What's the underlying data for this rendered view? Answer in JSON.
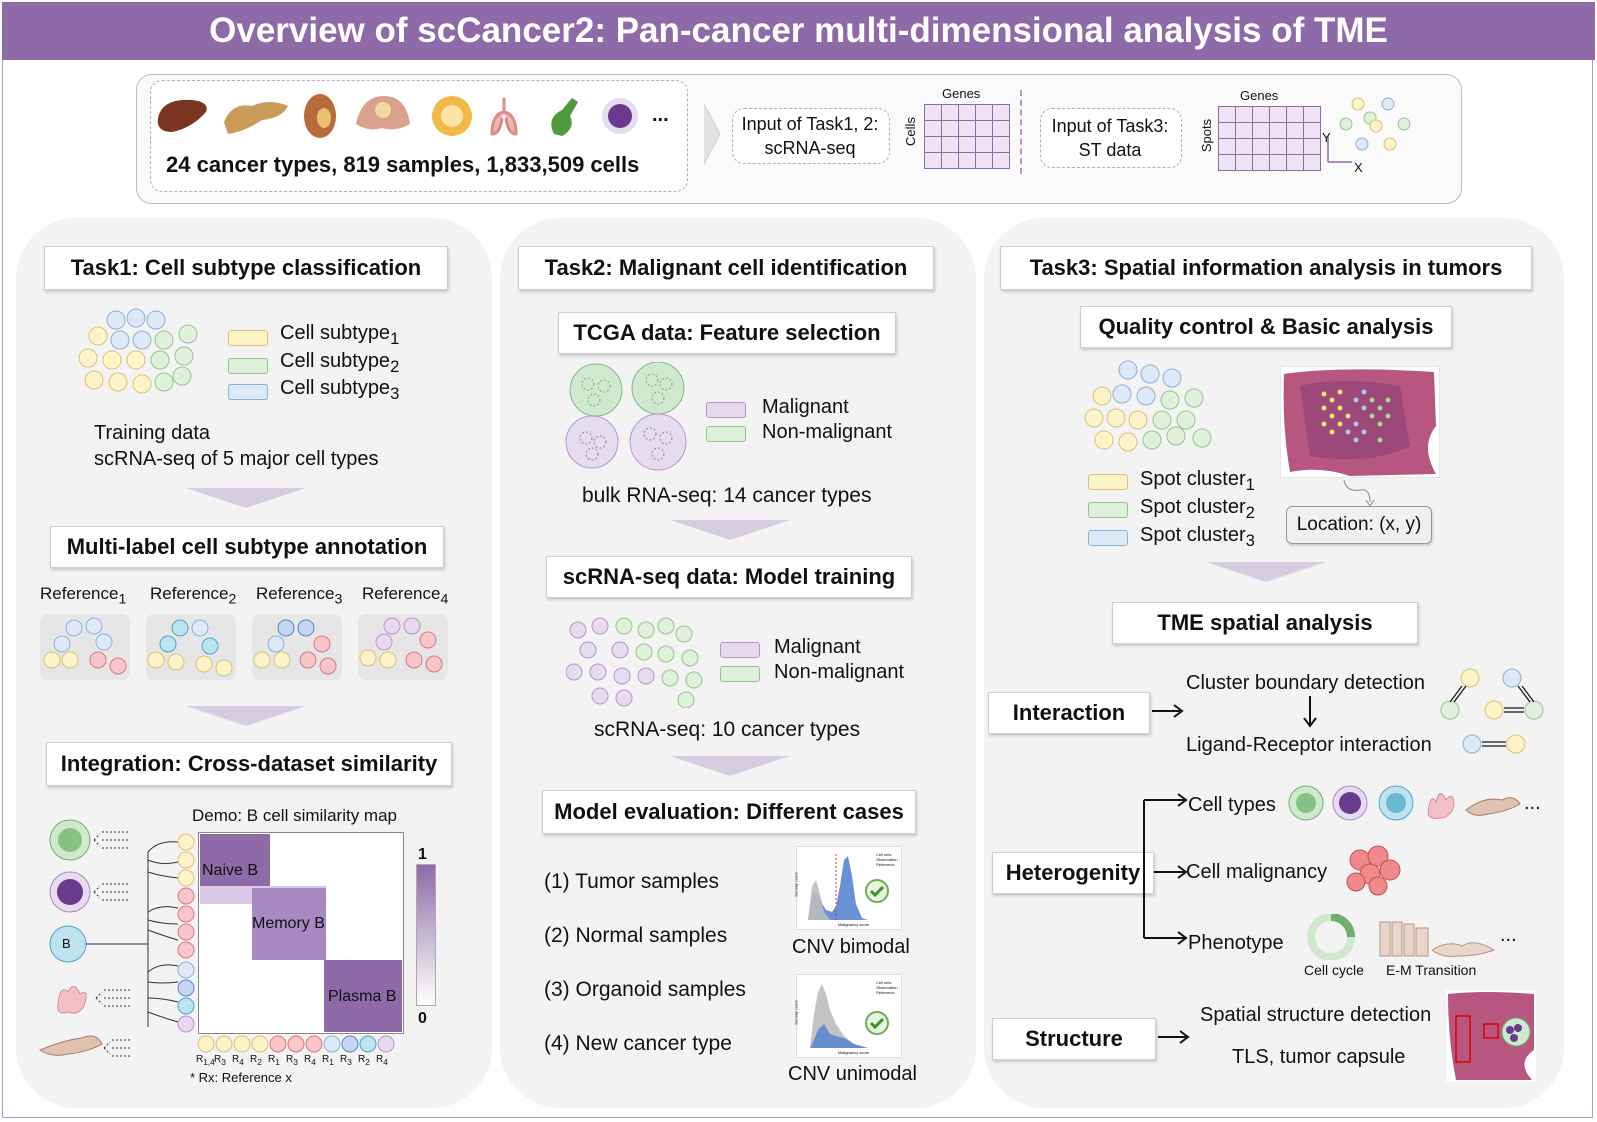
{
  "title": "Overview of scCancer2: Pan-cancer multi-dimensional analysis of TME",
  "top": {
    "stats": "24 cancer types, 819 samples, 1,833,509 cells",
    "ellipsis": "...",
    "input12": "Input of Task1, 2:",
    "input12_sub": "scRNA-seq",
    "genes1": "Genes",
    "cells": "Cells",
    "input3": "Input of Task3:",
    "input3_sub": "ST data",
    "genes2": "Genes",
    "spots": "Spots",
    "axis_y": "Y",
    "axis_x": "X",
    "organ_icons": [
      "liver-icon",
      "pancreas-icon",
      "kidney-icon",
      "uterus-icon",
      "breast-icon",
      "lung-icon",
      "gallbladder-icon",
      "cell-icon"
    ]
  },
  "task1": {
    "title": "Task1: Cell subtype classification",
    "legend": [
      {
        "label": "Cell subtype",
        "sub": "1",
        "color": "#fdf3c9"
      },
      {
        "label": "Cell subtype",
        "sub": "2",
        "color": "#dff0db"
      },
      {
        "label": "Cell subtype",
        "sub": "3",
        "color": "#dde9f7"
      }
    ],
    "training_line1": "Training data",
    "training_line2": "scRNA-seq of 5 major cell types",
    "step2": "Multi-label cell subtype annotation",
    "refs": [
      {
        "label": "Reference",
        "sub": "1"
      },
      {
        "label": "Reference",
        "sub": "2"
      },
      {
        "label": "Reference",
        "sub": "3"
      },
      {
        "label": "Reference",
        "sub": "4"
      }
    ],
    "step3": "Integration: Cross-dataset similarity",
    "demo_title": "Demo: B cell similarity map",
    "blocks": [
      "Naive B",
      "Memory B",
      "Plasma B"
    ],
    "b_label": "B",
    "scale_max": "1",
    "scale_min": "0",
    "x_ticks": [
      {
        "r": "R",
        "s": "1,4"
      },
      {
        "r": "R",
        "s": "3"
      },
      {
        "r": "R",
        "s": "4"
      },
      {
        "r": "R",
        "s": "2"
      },
      {
        "r": "R",
        "s": "1"
      },
      {
        "r": "R",
        "s": "3"
      },
      {
        "r": "R",
        "s": "4"
      },
      {
        "r": "R",
        "s": "1"
      },
      {
        "r": "R",
        "s": "3"
      },
      {
        "r": "R",
        "s": "2"
      },
      {
        "r": "R",
        "s": "4"
      }
    ],
    "footnote": "* Rx: Reference x"
  },
  "task2": {
    "title": "Task2: Malignant cell identification",
    "step1": "TCGA data: Feature selection",
    "legend1": [
      "Malignant",
      "Non-malignant"
    ],
    "bulk": "bulk RNA-seq: 14 cancer types",
    "step2": "scRNA-seq data: Model training",
    "legend2": [
      "Malignant",
      "Non-malignant"
    ],
    "sc": "scRNA-seq: 10 cancer types",
    "step3": "Model evaluation: Different cases",
    "cases": [
      "(1) Tumor samples",
      "(2) Normal samples",
      "(3) Organoid samples",
      "(4) New cancer type"
    ],
    "cnv1": "CNV bimodal",
    "cnv2": "CNV unimodal",
    "hist_ylabel": "Density count",
    "hist_xlabel": "Malignancy score",
    "hist_legend_title": "Cell sets",
    "hist_legend": [
      "Observation",
      "Reference"
    ]
  },
  "task3": {
    "title": "Task3: Spatial information analysis in tumors",
    "step1": "Quality control & Basic analysis",
    "legend": [
      {
        "label": "Spot cluster",
        "sub": "1"
      },
      {
        "label": "Spot cluster",
        "sub": "2"
      },
      {
        "label": "Spot cluster",
        "sub": "3"
      }
    ],
    "location": "Location: (x, y)",
    "step2": "TME spatial analysis",
    "interaction": "Interaction",
    "boundary": "Cluster boundary detection",
    "lr": "Ligand-Receptor interaction",
    "heterogenity": "Heterogenity",
    "cell_types": "Cell types",
    "malignancy": "Cell malignancy",
    "phenotype": "Phenotype",
    "cell_cycle": "Cell cycle",
    "emt": "E-M Transition",
    "structure": "Structure",
    "struct1": "Spatial structure detection",
    "struct2": "TLS, tumor capsule",
    "ellipsis": "..."
  },
  "colors": {
    "purple": "#8f6aa8",
    "yellow": "#fdf3c9",
    "green": "#dff0db",
    "blue": "#dde9f7",
    "red": "#f6c6c8"
  }
}
